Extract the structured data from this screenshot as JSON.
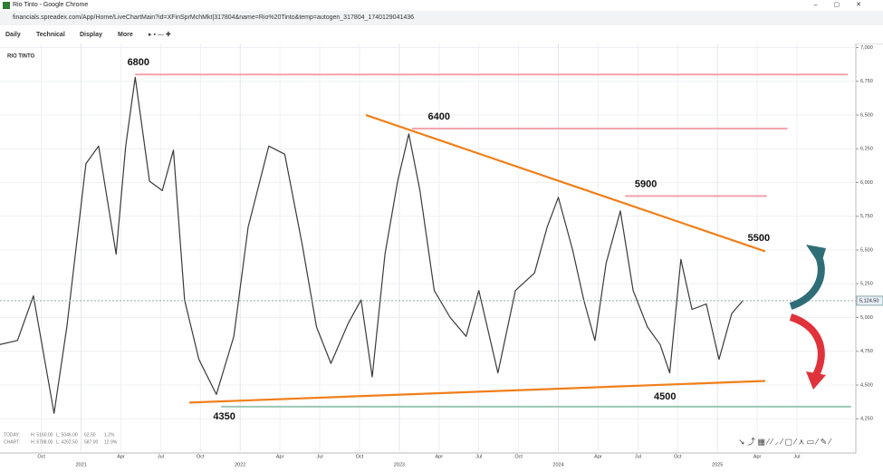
{
  "window": {
    "title": "Rio Tinto - Google Chrome",
    "url": "financials.spreadex.com/App/Home/LiveChartMain?id=XFinSprMchMkt|317804&name=Rio%20Tinto&temp=autogen_317804_1740129041436"
  },
  "toolbar": [
    "Daily",
    "Technical",
    "Display",
    "More"
  ],
  "chart_data": {
    "type": "line",
    "title": "RIO TINTO",
    "x": [
      2020.49,
      2020.6,
      2020.7,
      2020.83,
      2020.91,
      2021.03,
      2021.11,
      2021.22,
      2021.28,
      2021.34,
      2021.43,
      2021.51,
      2021.58,
      2021.65,
      2021.74,
      2021.85,
      2021.96,
      2022.05,
      2022.18,
      2022.28,
      2022.39,
      2022.48,
      2022.57,
      2022.68,
      2022.76,
      2022.83,
      2022.91,
      2022.99,
      2023.06,
      2023.13,
      2023.22,
      2023.32,
      2023.42,
      2023.5,
      2023.62,
      2023.73,
      2023.85,
      2023.93,
      2024.0,
      2024.09,
      2024.16,
      2024.23,
      2024.3,
      2024.39,
      2024.47,
      2024.56,
      2024.64,
      2024.7,
      2024.77,
      2024.84,
      2024.93,
      2025.01,
      2025.09,
      2025.16
    ],
    "series": [
      {
        "name": "Rio Tinto",
        "color": "#3a3a3a",
        "values": [
          4800,
          4830,
          5160,
          4290,
          4930,
          6140,
          6270,
          5470,
          6270,
          6780,
          6010,
          5940,
          6240,
          5130,
          4690,
          4430,
          4860,
          5670,
          6270,
          6210,
          5540,
          4930,
          4660,
          4960,
          5130,
          4560,
          5470,
          6010,
          6360,
          5940,
          5200,
          5000,
          4860,
          5200,
          4590,
          5200,
          5330,
          5670,
          5890,
          5500,
          5130,
          4830,
          5400,
          5790,
          5200,
          4930,
          4800,
          4590,
          5430,
          5060,
          5100,
          4690,
          5030,
          5124.5
        ]
      }
    ],
    "xlim": [
      2020.49,
      2025.87
    ],
    "ylim": [
      4010,
      7030
    ],
    "xticks": [
      {
        "value": 2020.75,
        "label": "Oct"
      },
      {
        "value": 2021.25,
        "label": "Apr"
      },
      {
        "value": 2021.5,
        "label": "Jul"
      },
      {
        "value": 2021.75,
        "label": "Oct"
      },
      {
        "value": 2022.25,
        "label": "Apr"
      },
      {
        "value": 2022.5,
        "label": "Jul"
      },
      {
        "value": 2022.75,
        "label": "Oct"
      },
      {
        "value": 2023.25,
        "label": "Apr"
      },
      {
        "value": 2023.5,
        "label": "Jul"
      },
      {
        "value": 2023.75,
        "label": "Oct"
      },
      {
        "value": 2024.25,
        "label": "Apr"
      },
      {
        "value": 2024.5,
        "label": "Jul"
      },
      {
        "value": 2024.75,
        "label": "Oct"
      },
      {
        "value": 2025.25,
        "label": "Apr"
      },
      {
        "value": 2025.5,
        "label": "Jul"
      }
    ],
    "xticks_major": [
      2021,
      2022,
      2023,
      2024,
      2025
    ],
    "yticks": [
      {
        "value": 4250,
        "label": "4,250"
      },
      {
        "value": 4500,
        "label": "4,500"
      },
      {
        "value": 4750,
        "label": "4,750"
      },
      {
        "value": 5000,
        "label": "5,000"
      },
      {
        "value": 5250,
        "label": "5,250"
      },
      {
        "value": 5500,
        "label": "5,500"
      },
      {
        "value": 5750,
        "label": "5,750"
      },
      {
        "value": 6000,
        "label": "6,000"
      },
      {
        "value": 6250,
        "label": "6,250"
      },
      {
        "value": 6500,
        "label": "6,500"
      },
      {
        "value": 6750,
        "label": "6,750"
      },
      {
        "value": 7000,
        "label": "7,000"
      }
    ],
    "grid": true,
    "last_price": {
      "value": 5124.5,
      "label": "5,124.50"
    },
    "levels": [
      {
        "value": 6800,
        "x": [
          2021.34,
          2025.82
        ],
        "color": "#f2a2aa"
      },
      {
        "value": 6400,
        "x": [
          2023.08,
          2025.44
        ],
        "color": "#f2a2aa"
      },
      {
        "value": 5900,
        "x": [
          2024.42,
          2025.31
        ],
        "color": "#f2a2aa"
      },
      {
        "value": 4340,
        "x": [
          2021.88,
          2025.84
        ],
        "color": "#9cc7b4"
      }
    ],
    "trendlines": [
      {
        "x": [
          2022.79,
          2025.3
        ],
        "values": [
          6500,
          5490
        ],
        "color": "#f07f1a"
      },
      {
        "x": [
          2021.68,
          2025.3
        ],
        "values": [
          4370,
          4530
        ],
        "color": "#f07f1a"
      }
    ],
    "annotations": [
      {
        "value": 6800,
        "x": 2021.36,
        "position": "above"
      },
      {
        "value": 6400,
        "x": 2023.25,
        "position": "above"
      },
      {
        "value": 5900,
        "x": 2024.55,
        "position": "above"
      },
      {
        "value": 5500,
        "x": 2025.26,
        "position": "above"
      },
      {
        "value": 4350,
        "x": 2021.9,
        "position": "below"
      },
      {
        "value": 4500,
        "x": 2024.67,
        "position": "below"
      }
    ],
    "info": [
      [
        "TODAY:",
        "H: 5160.00",
        "L: 5046.00",
        "62.50",
        "1.2%"
      ],
      [
        "CHART:",
        "H: 6788.00",
        "L: 4262.50",
        "587.00",
        "12.9%"
      ]
    ]
  }
}
